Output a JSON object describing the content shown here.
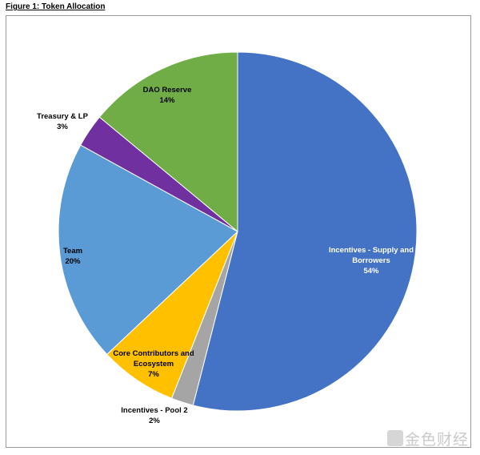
{
  "chart_data": {
    "type": "pie",
    "title": "Figure 1: Token Allocation",
    "categories": [
      "Incentives - Supply and Borrowers",
      "Incentives - Pool 2",
      "Core Contributors and Ecosystem",
      "Team",
      "Treasury & LP",
      "DAO Reserve"
    ],
    "values": [
      54,
      2,
      7,
      20,
      3,
      14
    ],
    "value_labels": [
      "54%",
      "2%",
      "7%",
      "20%",
      "3%",
      "14%"
    ],
    "colors": [
      "#4472c4",
      "#a5a5a5",
      "#ffc000",
      "#5b9bd5",
      "#7030a0",
      "#70ad47"
    ]
  },
  "watermark": "金色财经"
}
